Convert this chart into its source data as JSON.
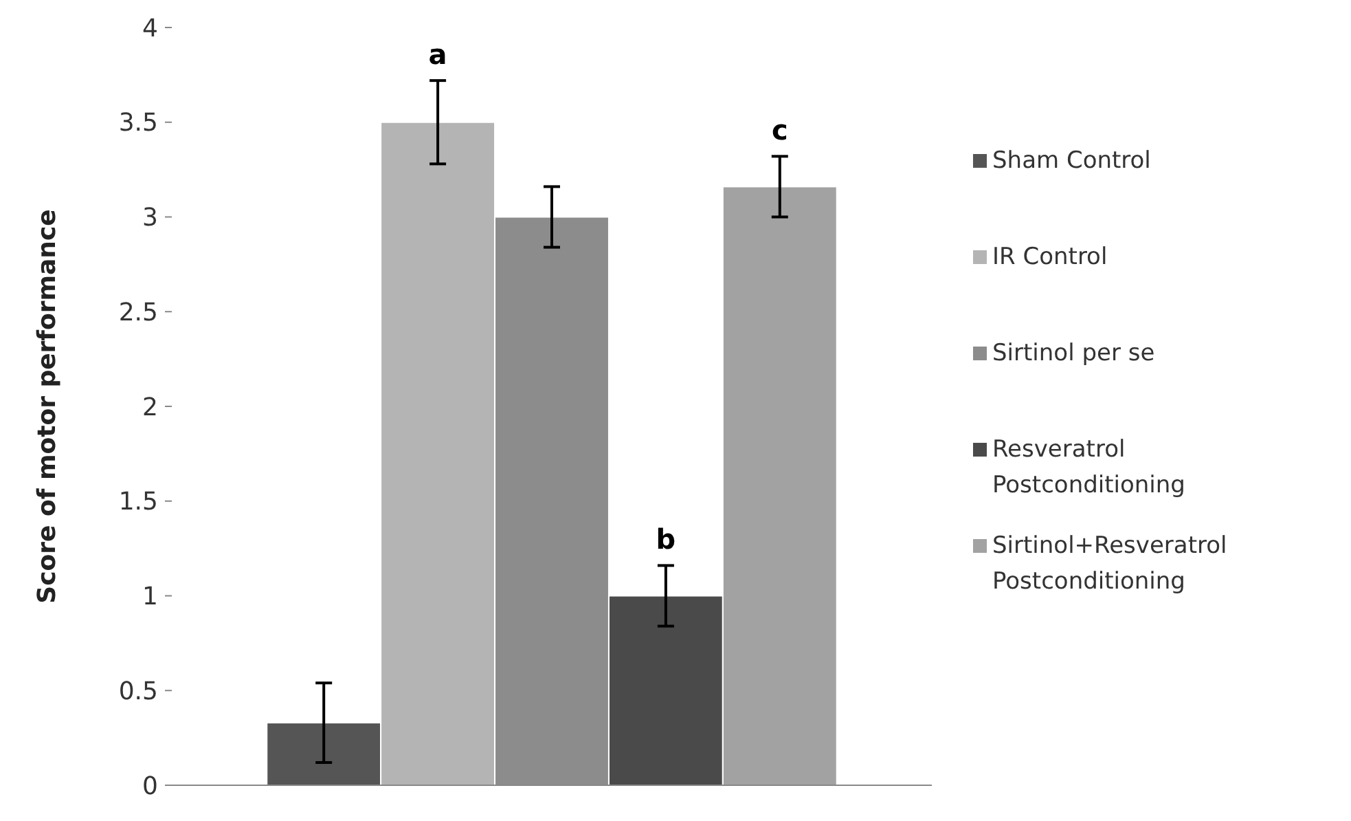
{
  "chart_data": {
    "type": "bar",
    "ylabel": "Score of motor performance",
    "categories": [
      null
    ],
    "ylim": [
      0,
      4
    ],
    "yticks": [
      0,
      0.5,
      1,
      1.5,
      2,
      2.5,
      3,
      3.5,
      4
    ],
    "grid": false,
    "legend": "right",
    "series": [
      {
        "name": "Sham Control",
        "color": "#555555",
        "values": [
          0.33
        ],
        "errors": [
          0.21
        ]
      },
      {
        "name": "IR Control",
        "color": "#b4b4b4",
        "values": [
          3.5
        ],
        "errors": [
          0.22
        ],
        "value_labels": [
          "a"
        ]
      },
      {
        "name": "Sirtinol per se",
        "color": "#8c8c8c",
        "values": [
          3.0
        ],
        "errors": [
          0.16
        ]
      },
      {
        "name": "Resveratrol Postconditioning",
        "color": "#4a4a4a",
        "values": [
          1.0
        ],
        "errors": [
          0.16
        ],
        "value_labels": [
          "b"
        ]
      },
      {
        "name": "Sirtinol+Resveratrol Postconditioning",
        "color": "#a2a2a2",
        "values": [
          3.16
        ],
        "errors": [
          0.16
        ],
        "value_labels": [
          "c"
        ]
      }
    ]
  }
}
